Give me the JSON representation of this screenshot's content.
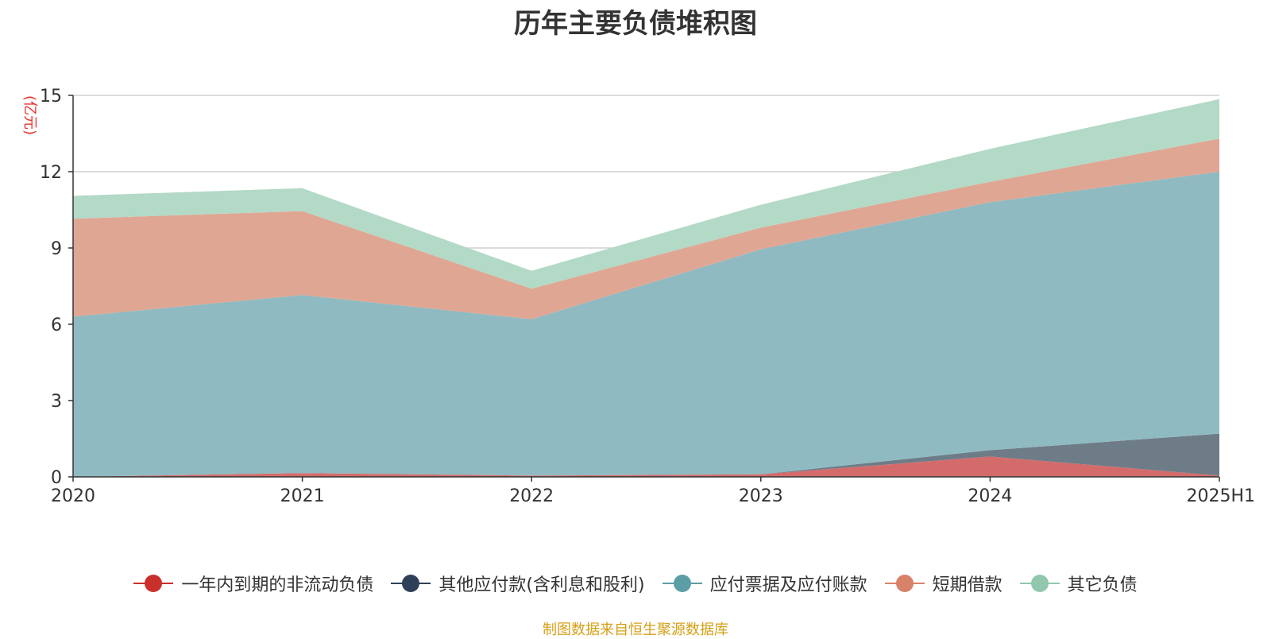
{
  "title": "历年主要负债堆积图",
  "source": "制图数据来自恒生聚源数据库",
  "colors": {
    "axis": "#333333",
    "grid": "#c8c8c8",
    "ylabel": "#e8322e"
  },
  "chart_data": {
    "type": "area",
    "stacked": true,
    "title": "历年主要负债堆积图",
    "ylabel": "(亿元)",
    "xlabel": "",
    "categories": [
      "2020",
      "2021",
      "2022",
      "2023",
      "2024",
      "2025H1"
    ],
    "ylim": [
      0,
      15
    ],
    "yticks": [
      0,
      3,
      6,
      9,
      12,
      15
    ],
    "grid": true,
    "legend_position": "bottom",
    "series": [
      {
        "name": "一年内到期的非流动负债",
        "color": "#c9302c",
        "fill": "#d46b6b",
        "values": [
          0.0,
          0.15,
          0.05,
          0.1,
          0.8,
          0.05
        ]
      },
      {
        "name": "其他应付款(含利息和股利)",
        "color": "#2e4057",
        "fill": "#6e7c87",
        "values": [
          0.0,
          0.0,
          0.0,
          0.0,
          0.25,
          1.65
        ]
      },
      {
        "name": "应付票据及应付账款",
        "color": "#5b9ea6",
        "fill": "#8fbac1",
        "values": [
          6.3,
          7.0,
          6.15,
          8.85,
          9.75,
          10.3
        ]
      },
      {
        "name": "短期借款",
        "color": "#d9826a",
        "fill": "#dfa793",
        "values": [
          3.85,
          3.3,
          1.2,
          0.85,
          0.8,
          1.3
        ]
      },
      {
        "name": "其它负债",
        "color": "#91c7ad",
        "fill": "#b3d9c7",
        "values": [
          0.9,
          0.9,
          0.7,
          0.9,
          1.3,
          1.55
        ]
      }
    ]
  }
}
